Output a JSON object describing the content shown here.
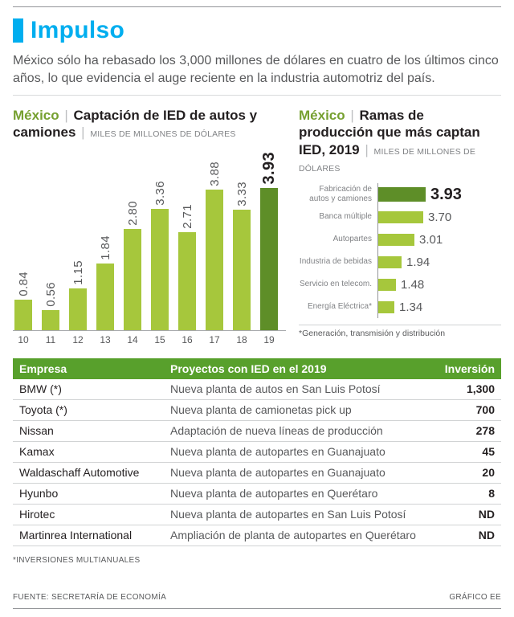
{
  "ui": {
    "sep": "|"
  },
  "colors": {
    "accent_cyan": "#00aeef",
    "light_green": "#a6c73c",
    "dark_green": "#5e8e28",
    "table_header_green": "#58a02c",
    "text_gray": "#58595b"
  },
  "header": {
    "title": "Impulso",
    "intro": "México sólo ha rebasado los 3,000 millones de dólares en cuatro de los últimos cinco años, lo que evidencia el auge reciente en la industria automotriz del país."
  },
  "chart_data": [
    {
      "type": "bar",
      "orientation": "vertical",
      "title_region": "México",
      "title": "Captación de IED de autos y camiones",
      "units": "MILES DE MILLONES DE DÓLARES",
      "categories": [
        "10",
        "11",
        "12",
        "13",
        "14",
        "15",
        "16",
        "17",
        "18",
        "19"
      ],
      "values": [
        0.84,
        0.56,
        1.15,
        1.84,
        2.8,
        3.36,
        2.71,
        3.88,
        3.33,
        3.93
      ],
      "labels": [
        "0.84",
        "0.56",
        "1.15",
        "1.84",
        "2.80",
        "3.36",
        "2.71",
        "3.88",
        "3.33",
        "3.93"
      ],
      "highlight_index": 9,
      "ylim": [
        0,
        4.2
      ],
      "grid": false,
      "legend": false
    },
    {
      "type": "bar",
      "orientation": "horizontal",
      "title_region": "México",
      "title": "Ramas de producción que más captan IED, 2019",
      "units": "MILES DE MILLONES DE DÓLARES",
      "categories": [
        "Fabricación de autos y camiones",
        "Banca múltiple",
        "Autopartes",
        "Industria de bebidas",
        "Servicio en telecom.",
        "Energía Eléctrica*"
      ],
      "values": [
        3.93,
        3.7,
        3.01,
        1.94,
        1.48,
        1.34
      ],
      "labels": [
        "3.93",
        "3.70",
        "3.01",
        "1.94",
        "1.48",
        "1.34"
      ],
      "highlight_index": 0,
      "footnote": "*Generación, transmisión y distribución",
      "grid": false,
      "legend": false
    }
  ],
  "table": {
    "headers": [
      "Empresa",
      "Proyectos con IED en el 2019",
      "Inversión"
    ],
    "rows": [
      [
        "BMW (*)",
        "Nueva planta de autos en San Luis Potosí",
        "1,300"
      ],
      [
        "Toyota (*)",
        "Nueva planta de camionetas pick up",
        "700"
      ],
      [
        "Nissan",
        "Adaptación de nueva líneas de producción",
        "278"
      ],
      [
        "Kamax",
        "Nueva planta de autopartes en Guanajuato",
        "45"
      ],
      [
        "Waldaschaff Automotive",
        "Nueva planta de autopartes en Guanajuato",
        "20"
      ],
      [
        "Hyunbo",
        "Nueva planta de autopartes en Querétaro",
        "8"
      ],
      [
        "Hirotec",
        "Nueva planta de autopartes en San Luis Potosí",
        "ND"
      ],
      [
        "Martinrea International",
        "Ampliación de planta de autopartes en Querétaro",
        "ND"
      ]
    ]
  },
  "footer": {
    "note": "*INVERSIONES MULTIANUALES",
    "source": "FUENTE: SECRETARÍA DE ECONOMÍA",
    "credit": "GRÁFICO EE"
  }
}
